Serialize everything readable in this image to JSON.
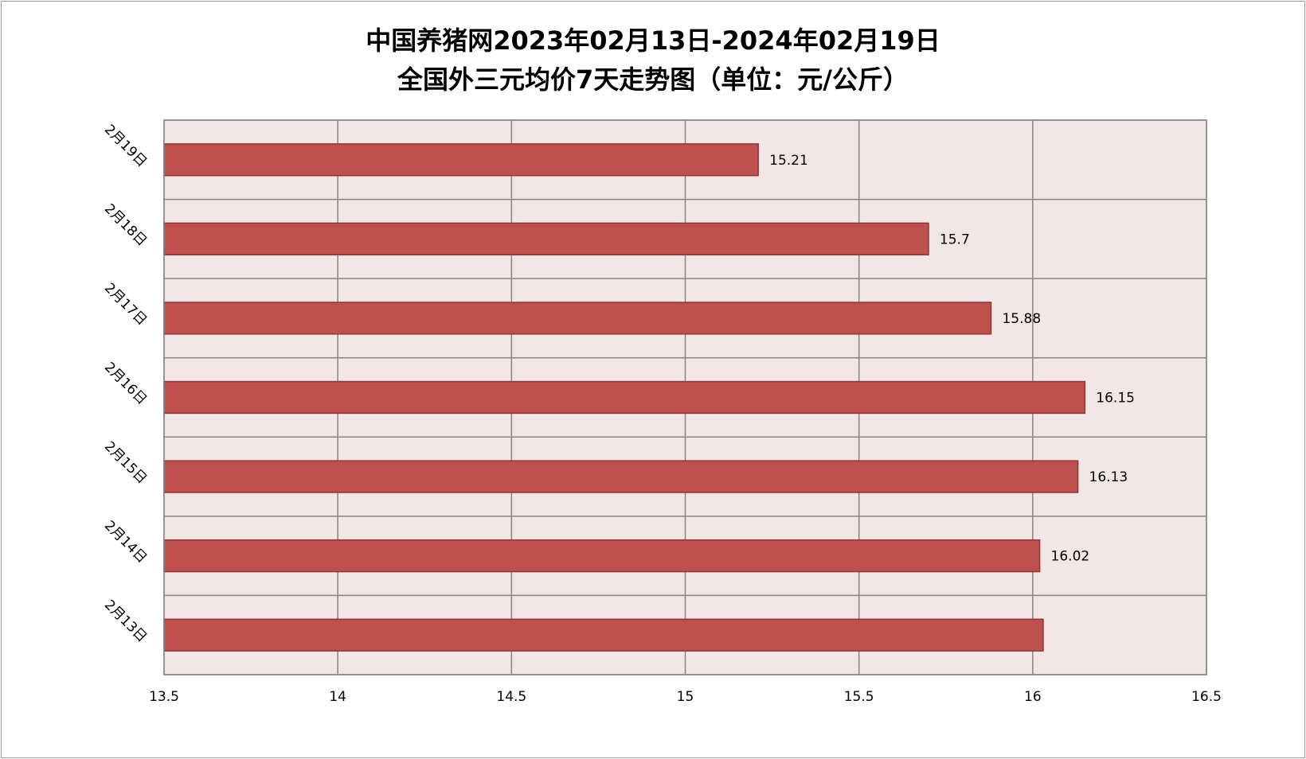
{
  "chart_data": {
    "type": "bar",
    "orientation": "horizontal",
    "title_line1": "中国养猪网2023年02月13日-2024年02月19日",
    "title_line2": "全国外三元均价7天走势图（单位：元/公斤）",
    "categories": [
      "2月13日",
      "2月14日",
      "2月15日",
      "2月16日",
      "2月17日",
      "2月18日",
      "2月19日"
    ],
    "values": [
      16.03,
      16.02,
      16.13,
      16.15,
      15.88,
      15.7,
      15.21
    ],
    "data_labels": [
      "",
      "16.02",
      "16.13",
      "16.15",
      "15.88",
      "15.7",
      "15.21"
    ],
    "xlim": [
      13.5,
      16.5
    ],
    "xticks": [
      "13.5",
      "14",
      "14.5",
      "15",
      "15.5",
      "16",
      "16.5"
    ],
    "grid": true,
    "legend": "none",
    "colors": {
      "bar_fill": "#c0504d",
      "bar_stroke": "#8c3836",
      "plot_bg": "#f2e6e6",
      "grid": "#868686"
    }
  }
}
